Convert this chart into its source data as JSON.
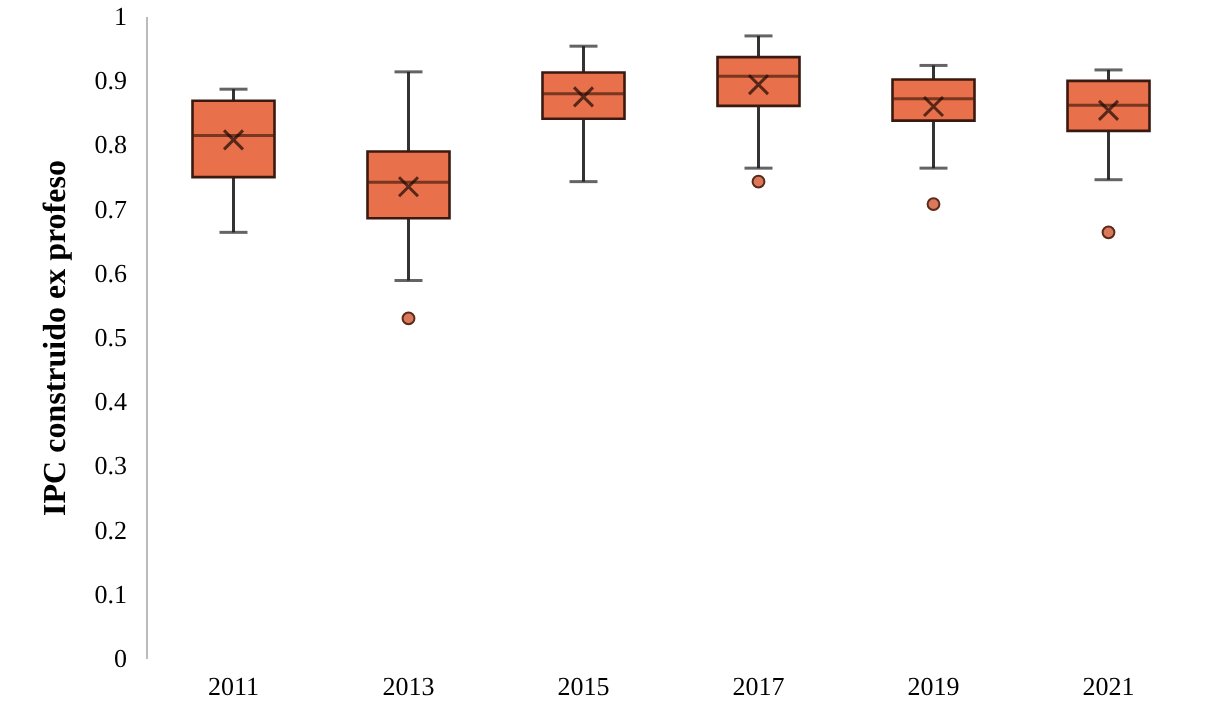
{
  "chart_data": {
    "type": "box",
    "ylabel": "IPC construido ex profeso",
    "categories": [
      "2011",
      "2013",
      "2015",
      "2017",
      "2019",
      "2021"
    ],
    "color": "#e8704a",
    "boxes": [
      {
        "low": 0.663,
        "q1": 0.749,
        "median": 0.814,
        "q3": 0.868,
        "high": 0.886,
        "mean": 0.807
      },
      {
        "low": 0.588,
        "q1": 0.685,
        "median": 0.741,
        "q3": 0.789,
        "high": 0.913,
        "mean": 0.734,
        "outliers": [
          0.529
        ]
      },
      {
        "low": 0.742,
        "q1": 0.84,
        "median": 0.879,
        "q3": 0.912,
        "high": 0.953,
        "mean": 0.874
      },
      {
        "low": 0.763,
        "q1": 0.86,
        "median": 0.906,
        "q3": 0.936,
        "high": 0.969,
        "mean": 0.893,
        "outliers": [
          0.742
        ]
      },
      {
        "low": 0.763,
        "q1": 0.837,
        "median": 0.871,
        "q3": 0.901,
        "high": 0.923,
        "mean": 0.859,
        "outliers": [
          0.707
        ]
      },
      {
        "low": 0.745,
        "q1": 0.821,
        "median": 0.861,
        "q3": 0.899,
        "high": 0.916,
        "mean": 0.853,
        "outliers": [
          0.663
        ]
      }
    ],
    "ylim": [
      0,
      1
    ],
    "yticks": [
      0,
      0.1,
      0.2,
      0.3,
      0.4,
      0.5,
      0.6,
      0.7,
      0.8,
      0.9,
      1
    ],
    "grid": false,
    "marker": "circle"
  }
}
